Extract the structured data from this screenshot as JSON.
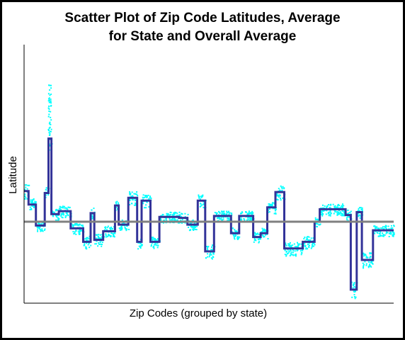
{
  "chart_data": {
    "type": "scatter",
    "title_lines": [
      "Scatter Plot of Zip Code Latitudes, Average",
      "for State and Overall Average"
    ],
    "xlabel": "Zip Codes (grouped by state)",
    "ylabel": "Latitude",
    "grid": false,
    "legend": "none",
    "x_tick_labels": [],
    "y_tick_labels": [],
    "overall_average_relative": 0.0,
    "series": [
      {
        "kind": "scatter",
        "color": "#00FFFF",
        "description_visible": false
      },
      {
        "kind": "step-line",
        "color": "#333399",
        "note": "state average per group (relative latitude units)",
        "steps": [
          [
            0.0,
            0.012,
            0.32
          ],
          [
            0.012,
            0.032,
            0.18
          ],
          [
            0.032,
            0.056,
            -0.04
          ],
          [
            0.056,
            0.066,
            0.3
          ],
          [
            0.066,
            0.074,
            0.87
          ],
          [
            0.074,
            0.094,
            0.08
          ],
          [
            0.094,
            0.126,
            0.11
          ],
          [
            0.126,
            0.16,
            -0.07
          ],
          [
            0.16,
            0.18,
            -0.21
          ],
          [
            0.18,
            0.19,
            0.09
          ],
          [
            0.19,
            0.214,
            -0.19
          ],
          [
            0.214,
            0.246,
            -0.1
          ],
          [
            0.246,
            0.256,
            0.17
          ],
          [
            0.256,
            0.282,
            -0.03
          ],
          [
            0.282,
            0.306,
            0.25
          ],
          [
            0.306,
            0.318,
            -0.21
          ],
          [
            0.318,
            0.342,
            0.22
          ],
          [
            0.342,
            0.366,
            -0.21
          ],
          [
            0.366,
            0.42,
            0.05
          ],
          [
            0.42,
            0.442,
            0.04
          ],
          [
            0.442,
            0.47,
            -0.03
          ],
          [
            0.47,
            0.49,
            0.22
          ],
          [
            0.49,
            0.514,
            -0.31
          ],
          [
            0.514,
            0.56,
            0.06
          ],
          [
            0.56,
            0.582,
            -0.12
          ],
          [
            0.582,
            0.62,
            0.06
          ],
          [
            0.62,
            0.64,
            -0.16
          ],
          [
            0.64,
            0.658,
            -0.12
          ],
          [
            0.658,
            0.68,
            0.15
          ],
          [
            0.68,
            0.704,
            0.31
          ],
          [
            0.704,
            0.754,
            -0.28
          ],
          [
            0.754,
            0.786,
            -0.21
          ],
          [
            0.786,
            0.8,
            0.0
          ],
          [
            0.8,
            0.87,
            0.13
          ],
          [
            0.87,
            0.884,
            0.07
          ],
          [
            0.884,
            0.9,
            -0.71
          ],
          [
            0.9,
            0.914,
            0.1
          ],
          [
            0.914,
            0.944,
            -0.4
          ],
          [
            0.944,
            1.0,
            -0.09
          ]
        ]
      },
      {
        "kind": "hline",
        "color": "#808080",
        "value": 0.0,
        "note": "overall average"
      }
    ]
  }
}
